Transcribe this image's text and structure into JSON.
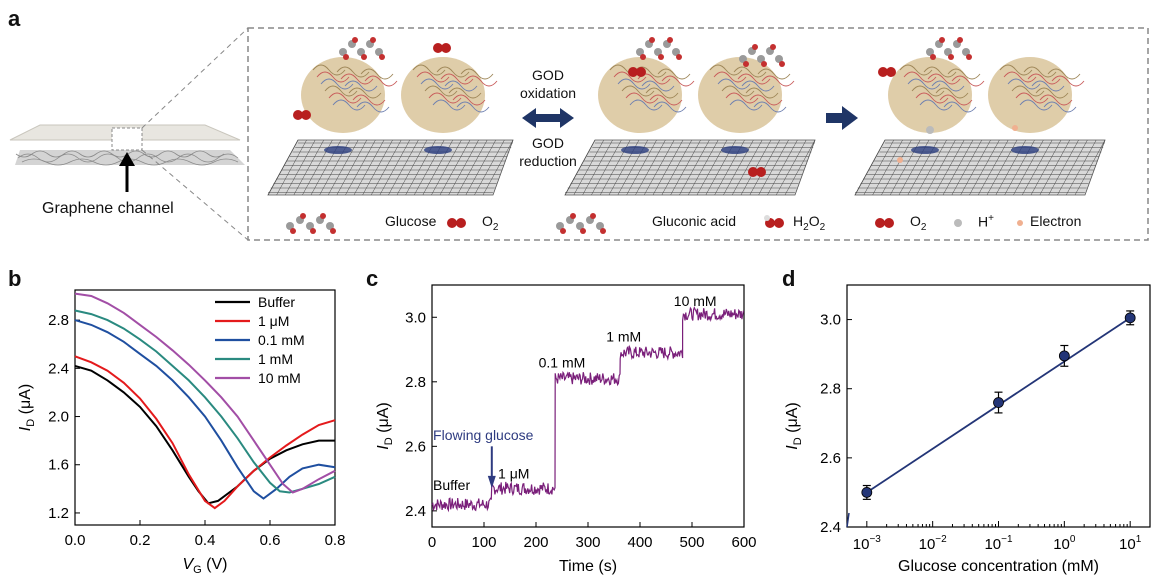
{
  "panel_a": {
    "letter": "a",
    "channel_label": "Graphene channel",
    "arrow_top": "GOD",
    "arrow_top2": "oxidation",
    "arrow_bottom": "GOD",
    "arrow_bottom2": "reduction",
    "legend": {
      "glucose": "Glucose",
      "o2": "O",
      "o2_sub": "2",
      "gluconic": "Gluconic acid",
      "h2o2_a": "H",
      "h2o2_s1": "2",
      "h2o2_b": "O",
      "h2o2_s2": "2",
      "o2b": "O",
      "o2b_sub": "2",
      "hplus": "H",
      "hplus_sup": "+",
      "electron": "Electron"
    }
  },
  "panel_b": {
    "letter": "b",
    "colors": {
      "Buffer": "#000000",
      "1 μM": "#e41a1c",
      "0.1 mM": "#1f4fa0",
      "1 mM": "#2a8a80",
      "10 mM": "#a24ea6"
    }
  },
  "panel_c": {
    "letter": "c",
    "annotations": {
      "flowing": "Flowing glucose",
      "buffer": "Buffer",
      "um1": "1 μM",
      "mm01": "0.1 mM",
      "mm1": "1 mM",
      "mm10": "10 mM"
    },
    "colors": {
      "trace": "#7a1f7a",
      "flow": "#2e3b80"
    }
  },
  "panel_d": {
    "letter": "d",
    "colors": {
      "marker": "#233577",
      "line": "#233577"
    }
  },
  "chart_data": [
    {
      "type": "line",
      "id": "b",
      "xlabel_main": "V",
      "xlabel_sub": "G",
      "xlabel_unit": " (V)",
      "ylabel_main": "I",
      "ylabel_sub": "D",
      "ylabel_unit": " (μA)",
      "xlim": [
        0,
        0.8
      ],
      "ylim": [
        1.1,
        3.05
      ],
      "xticks": [
        "0.0",
        "0.2",
        "0.4",
        "0.6",
        "0.8"
      ],
      "yticks": [
        "1.2",
        "1.6",
        "2.0",
        "2.4",
        "2.8"
      ],
      "legend_position": "top-right",
      "series": [
        {
          "name": "Buffer",
          "x": [
            0,
            0.05,
            0.1,
            0.15,
            0.2,
            0.25,
            0.3,
            0.35,
            0.38,
            0.41,
            0.44,
            0.5,
            0.55,
            0.6,
            0.65,
            0.7,
            0.75,
            0.8
          ],
          "values": [
            2.42,
            2.38,
            2.3,
            2.2,
            2.08,
            1.92,
            1.72,
            1.5,
            1.38,
            1.28,
            1.3,
            1.42,
            1.55,
            1.65,
            1.72,
            1.77,
            1.8,
            1.8
          ]
        },
        {
          "name": "1 μM",
          "x": [
            0,
            0.05,
            0.1,
            0.15,
            0.2,
            0.25,
            0.3,
            0.35,
            0.4,
            0.43,
            0.46,
            0.5,
            0.55,
            0.6,
            0.65,
            0.7,
            0.75,
            0.8
          ],
          "values": [
            2.5,
            2.45,
            2.38,
            2.28,
            2.15,
            1.98,
            1.78,
            1.52,
            1.3,
            1.24,
            1.3,
            1.42,
            1.55,
            1.66,
            1.76,
            1.85,
            1.93,
            1.97
          ]
        },
        {
          "name": "0.1 mM",
          "x": [
            0,
            0.05,
            0.1,
            0.15,
            0.2,
            0.25,
            0.3,
            0.35,
            0.4,
            0.45,
            0.5,
            0.55,
            0.58,
            0.62,
            0.66,
            0.7,
            0.75,
            0.8
          ],
          "values": [
            2.8,
            2.76,
            2.7,
            2.62,
            2.52,
            2.42,
            2.3,
            2.16,
            2.0,
            1.8,
            1.58,
            1.38,
            1.32,
            1.4,
            1.5,
            1.57,
            1.6,
            1.58
          ]
        },
        {
          "name": "1 mM",
          "x": [
            0,
            0.05,
            0.1,
            0.15,
            0.2,
            0.25,
            0.3,
            0.35,
            0.4,
            0.45,
            0.5,
            0.55,
            0.6,
            0.63,
            0.66,
            0.7,
            0.75,
            0.8
          ],
          "values": [
            2.88,
            2.85,
            2.8,
            2.73,
            2.64,
            2.54,
            2.42,
            2.3,
            2.16,
            2.0,
            1.82,
            1.62,
            1.45,
            1.38,
            1.37,
            1.4,
            1.44,
            1.5
          ]
        },
        {
          "name": "10 mM",
          "x": [
            0,
            0.05,
            0.1,
            0.15,
            0.2,
            0.25,
            0.3,
            0.35,
            0.4,
            0.45,
            0.5,
            0.55,
            0.6,
            0.64,
            0.67,
            0.7,
            0.75,
            0.8
          ],
          "values": [
            3.02,
            3.0,
            2.94,
            2.86,
            2.76,
            2.66,
            2.55,
            2.43,
            2.3,
            2.16,
            2.0,
            1.8,
            1.6,
            1.44,
            1.37,
            1.4,
            1.48,
            1.55
          ]
        }
      ]
    },
    {
      "type": "line",
      "id": "c",
      "xlabel": "Time (s)",
      "ylabel_main": "I",
      "ylabel_sub": "D",
      "ylabel_unit": " (μA)",
      "xlim": [
        0,
        600
      ],
      "ylim": [
        2.35,
        3.1
      ],
      "xticks": [
        "0",
        "100",
        "200",
        "300",
        "400",
        "500",
        "600"
      ],
      "yticks": [
        "2.4",
        "2.6",
        "2.8",
        "3.0"
      ],
      "steps": [
        {
          "x0": 0,
          "x1": 115,
          "value": 2.42
        },
        {
          "x0": 115,
          "x1": 237,
          "value": 2.47
        },
        {
          "x0": 237,
          "x1": 362,
          "value": 2.81
        },
        {
          "x0": 362,
          "x1": 482,
          "value": 2.89
        },
        {
          "x0": 482,
          "x1": 600,
          "value": 3.01
        }
      ],
      "flow_x": 115
    },
    {
      "type": "scatter",
      "id": "d",
      "xlabel": "Glucose concentration (mM)",
      "ylabel_main": "I",
      "ylabel_sub": "D",
      "ylabel_unit": " (μA)",
      "x_scale": "log",
      "xlim": [
        0.0005,
        20
      ],
      "ylim": [
        2.4,
        3.1
      ],
      "xticks": [
        0.001,
        0.01,
        0.1,
        1,
        10
      ],
      "xtick_labels": [
        [
          "10",
          "−3"
        ],
        [
          "10",
          "−2"
        ],
        [
          "10",
          "−1"
        ],
        [
          "10",
          "0"
        ],
        [
          "10",
          "1"
        ]
      ],
      "yticks": [
        "2.4",
        "2.6",
        "2.8",
        "3.0"
      ],
      "x": [
        0.001,
        0.1,
        1,
        10
      ],
      "values": [
        2.5,
        2.76,
        2.895,
        3.005
      ],
      "errors": [
        0.02,
        0.03,
        0.03,
        0.02
      ],
      "fit": "line"
    }
  ]
}
